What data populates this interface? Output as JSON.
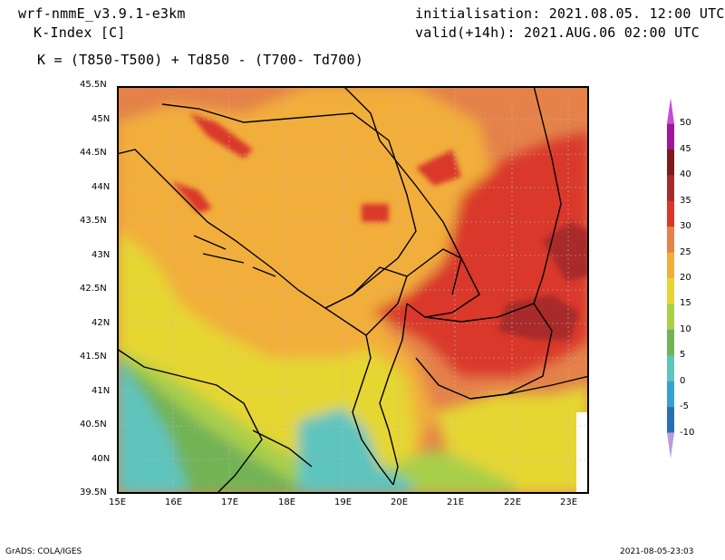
{
  "header": {
    "model": "wrf-nmmE_v3.9.1-e3km",
    "variable": "K-Index [C]",
    "formula": "K = (T850-T500) + Td850 - (T700- Td700)",
    "init": "initialisation: 2021.08.05. 12:00 UTC",
    "valid": "valid(+14h): 2021.AUG.06 02:00 UTC"
  },
  "map": {
    "lat_labels": [
      "45.5N",
      "45N",
      "44.5N",
      "44N",
      "43.5N",
      "43N",
      "42.5N",
      "42N",
      "41.5N",
      "41N",
      "40.5N",
      "40N",
      "39.5N"
    ],
    "lon_labels": [
      "15E",
      "16E",
      "17E",
      "18E",
      "19E",
      "20E",
      "21E",
      "22E",
      "23E"
    ]
  },
  "colorbar": {
    "labels": [
      "50",
      "45",
      "40",
      "35",
      "30",
      "25",
      "20",
      "15",
      "10",
      "5",
      "0",
      "-5",
      "-10"
    ],
    "colors": [
      "#c84bd6",
      "#a0179c",
      "#7e1a1a",
      "#a82b2b",
      "#d9392c",
      "#e4824a",
      "#f2ae3a",
      "#e5d632",
      "#a8cf4a",
      "#73b356",
      "#5ec4bd",
      "#3aa0d2",
      "#2870b3"
    ]
  },
  "footer": {
    "left": "GrADS: COLA/IGES",
    "right": "2021-08-05-23:03"
  }
}
